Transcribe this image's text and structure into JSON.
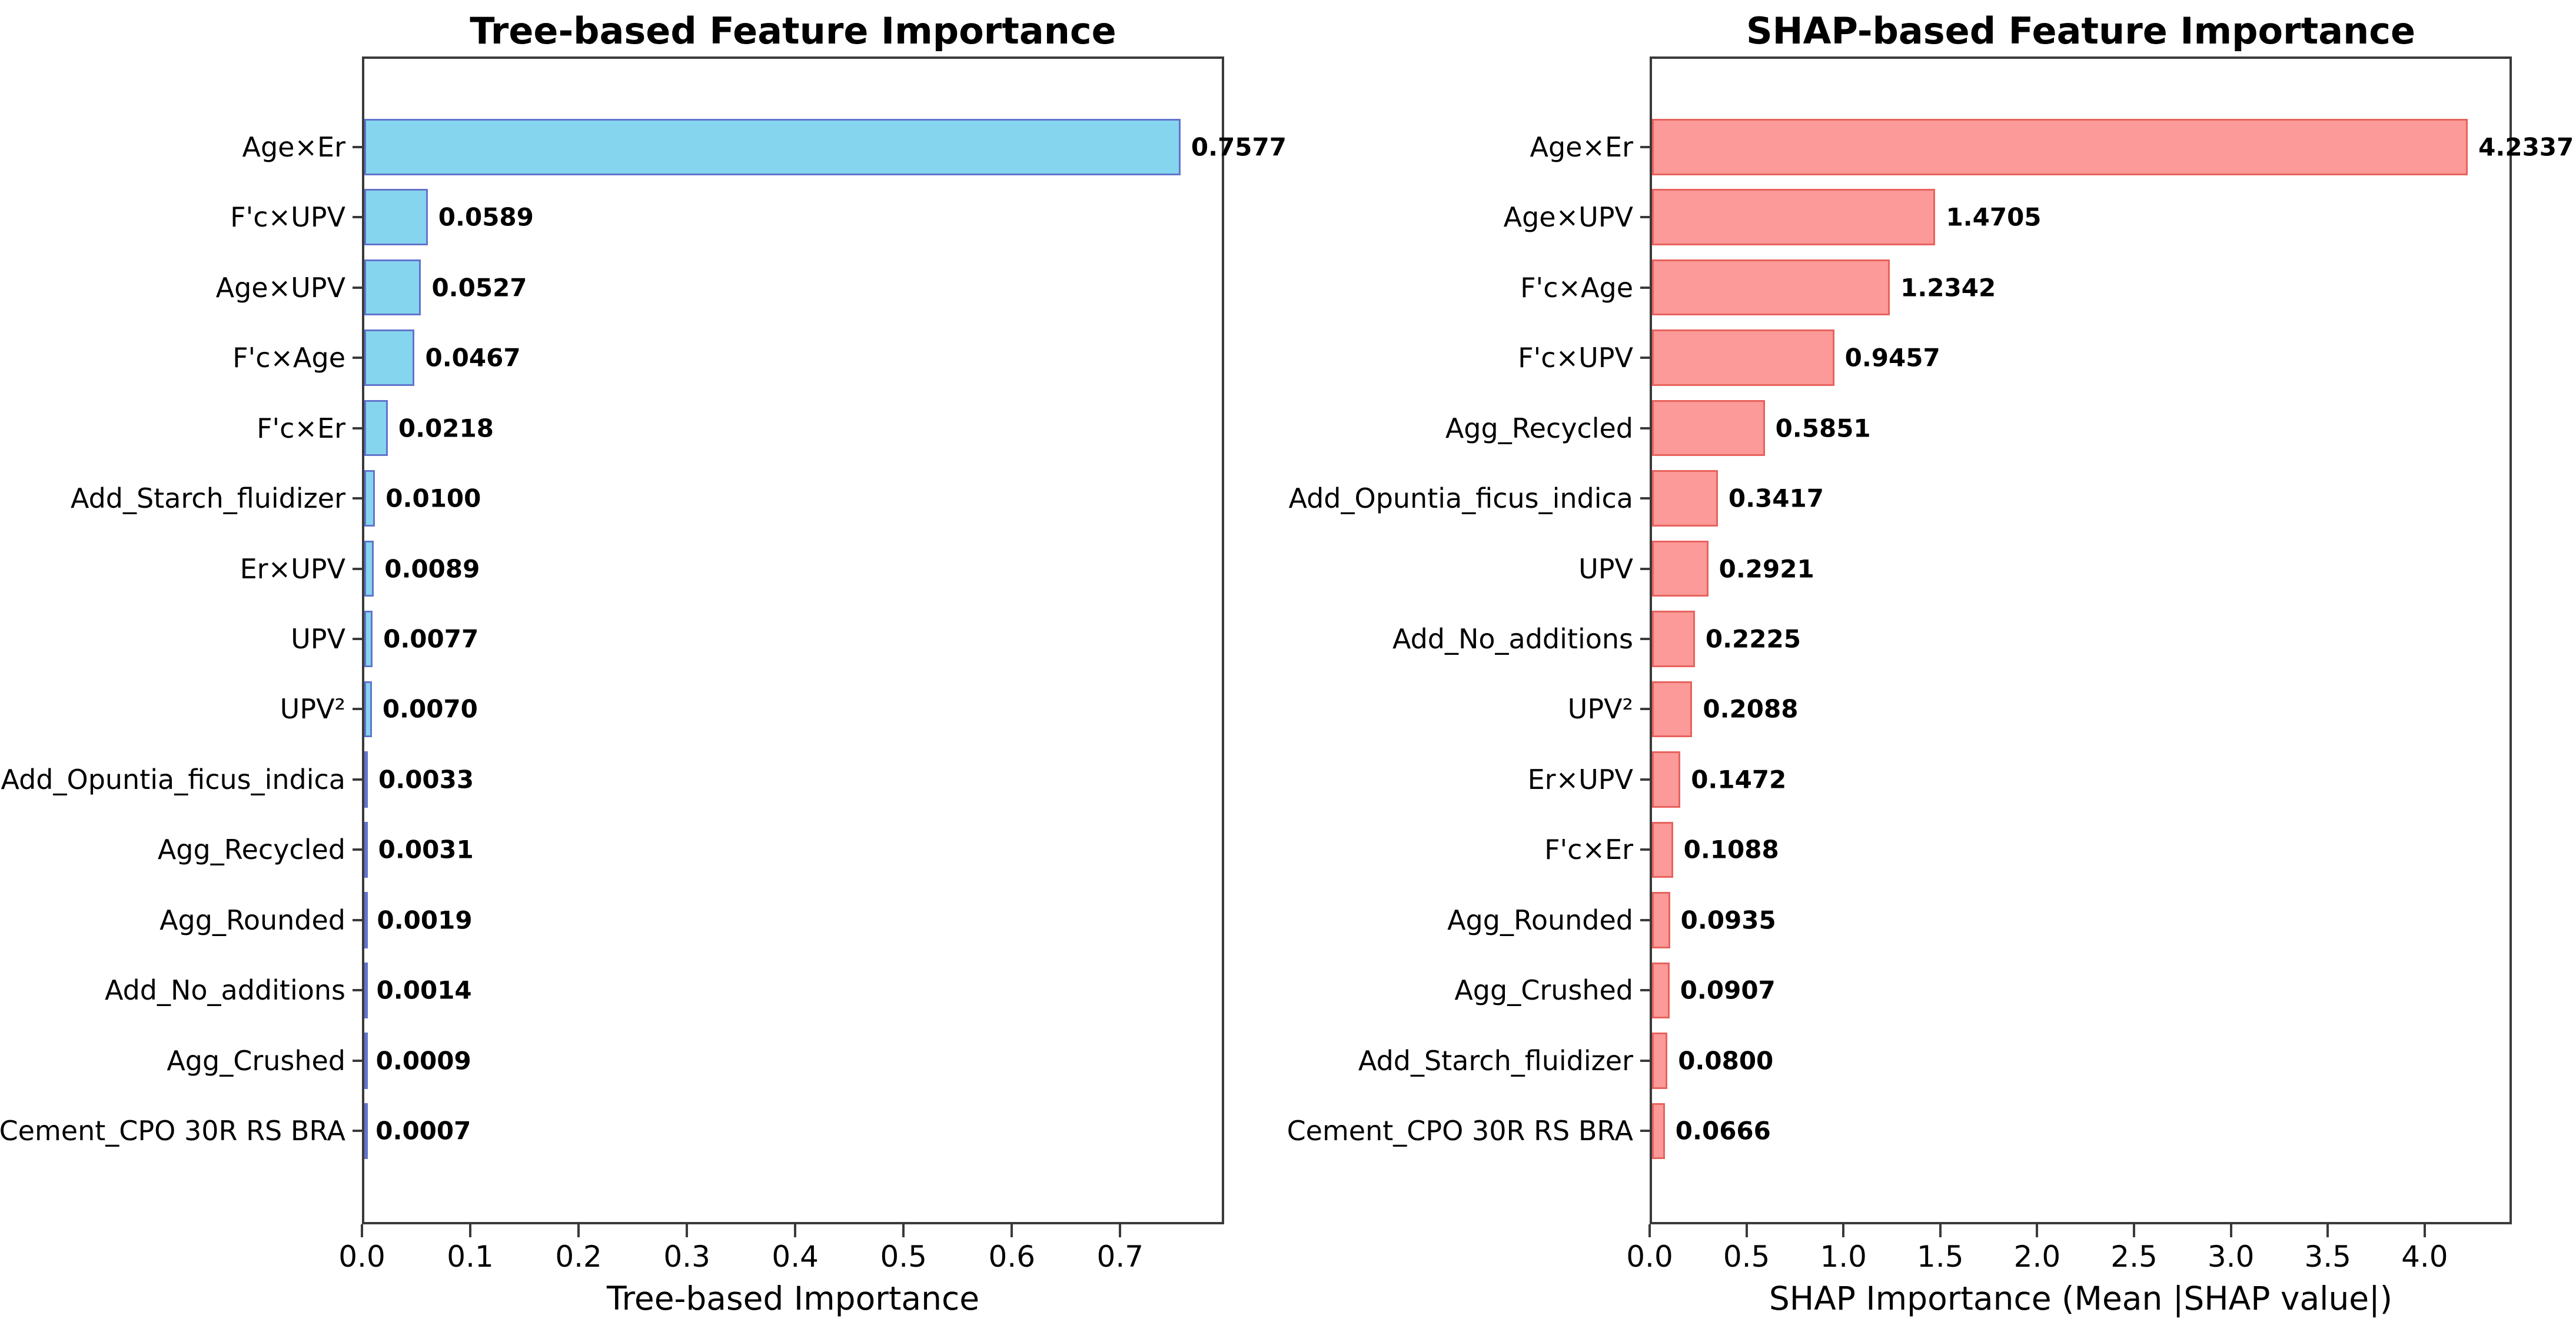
{
  "figure": {
    "background": "#ffffff",
    "text_color": "#000000",
    "spine_color": "#3a3a3a"
  },
  "chart_data": [
    {
      "type": "bar",
      "orientation": "horizontal",
      "title": "Tree-based Feature Importance",
      "xlabel": "Tree-based Importance",
      "ylabel": "",
      "legend": "none",
      "grid": false,
      "bar_fill": "#85D5EE",
      "bar_edge": "#6374CC",
      "xlim": [
        0,
        0.796
      ],
      "xmax": 0.796,
      "xticks": [
        "0.0",
        "0.1",
        "0.2",
        "0.3",
        "0.4",
        "0.5",
        "0.6",
        "0.7"
      ],
      "xtick_values": [
        0.0,
        0.1,
        0.2,
        0.3,
        0.4,
        0.5,
        0.6,
        0.7
      ],
      "categories": [
        "Age×Er",
        "F'c×UPV",
        "Age×UPV",
        "F'c×Age",
        "F'c×Er",
        "Add_Starch_fluidizer",
        "Er×UPV",
        "UPV",
        "UPV²",
        "Add_Opuntia_ficus_indica",
        "Agg_Recycled",
        "Agg_Rounded",
        "Add_No_additions",
        "Agg_Crushed",
        "Cement_CPO 30R RS BRA"
      ],
      "values": [
        0.7577,
        0.0589,
        0.0527,
        0.0467,
        0.0218,
        0.01,
        0.0089,
        0.0077,
        0.007,
        0.0033,
        0.0031,
        0.0019,
        0.0014,
        0.0009,
        0.0007
      ],
      "value_labels": [
        "0.7577",
        "0.0589",
        "0.0527",
        "0.0467",
        "0.0218",
        "0.0100",
        "0.0089",
        "0.0077",
        "0.0070",
        "0.0033",
        "0.0031",
        "0.0019",
        "0.0014",
        "0.0009",
        "0.0007"
      ]
    },
    {
      "type": "bar",
      "orientation": "horizontal",
      "title": "SHAP-based Feature Importance",
      "xlabel": "SHAP Importance (Mean |SHAP value|)",
      "ylabel": "",
      "legend": "none",
      "grid": false,
      "bar_fill": "#FB9A98",
      "bar_edge": "#E8625D",
      "xlim": [
        0,
        4.45
      ],
      "xmax": 4.45,
      "xticks": [
        "0.0",
        "0.5",
        "1.0",
        "1.5",
        "2.0",
        "2.5",
        "3.0",
        "3.5",
        "4.0"
      ],
      "xtick_values": [
        0.0,
        0.5,
        1.0,
        1.5,
        2.0,
        2.5,
        3.0,
        3.5,
        4.0
      ],
      "categories": [
        "Age×Er",
        "Age×UPV",
        "F'c×Age",
        "F'c×UPV",
        "Agg_Recycled",
        "Add_Opuntia_ficus_indica",
        "UPV",
        "Add_No_additions",
        "UPV²",
        "Er×UPV",
        "F'c×Er",
        "Agg_Rounded",
        "Agg_Crushed",
        "Add_Starch_fluidizer",
        "Cement_CPO 30R RS BRA"
      ],
      "values": [
        4.2337,
        1.4705,
        1.2342,
        0.9457,
        0.5851,
        0.3417,
        0.2921,
        0.2225,
        0.2088,
        0.1472,
        0.1088,
        0.0935,
        0.0907,
        0.08,
        0.0666
      ],
      "value_labels": [
        "4.2337",
        "1.4705",
        "1.2342",
        "0.9457",
        "0.5851",
        "0.3417",
        "0.2921",
        "0.2225",
        "0.2088",
        "0.1472",
        "0.1088",
        "0.0935",
        "0.0907",
        "0.0800",
        "0.0666"
      ]
    }
  ]
}
